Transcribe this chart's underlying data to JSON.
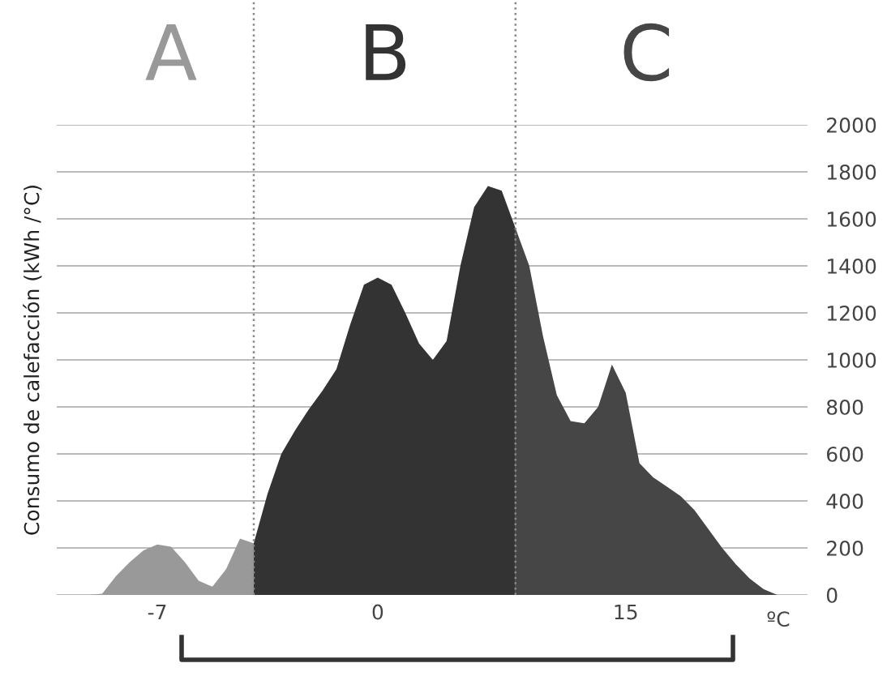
{
  "chart_data": {
    "type": "area",
    "ylabel": "Consumo de calefacción (kWh /°C)",
    "xlabel": "ºC",
    "categories": [
      null,
      null,
      null,
      null,
      null,
      "-7",
      null,
      null,
      null,
      null,
      null,
      null,
      null,
      null,
      null,
      null,
      null,
      null,
      null,
      null,
      null,
      "0",
      null,
      null,
      null,
      null,
      null,
      null,
      null,
      null,
      null,
      null,
      null,
      null,
      null,
      null,
      null,
      null,
      null,
      "15",
      null,
      null,
      null,
      null,
      null,
      null,
      null,
      null,
      null,
      null,
      null
    ],
    "series": [
      {
        "name": "A",
        "color": "#999999",
        "values": [
          0,
          5,
          80,
          140,
          190,
          215,
          205,
          140,
          60,
          35,
          110,
          240,
          220,
          null,
          null,
          null,
          null,
          null,
          null,
          null,
          null,
          null,
          null,
          null,
          null,
          null,
          null,
          null,
          null,
          null,
          null,
          null,
          null,
          null,
          null,
          null,
          null,
          null,
          null,
          null,
          null,
          null,
          null,
          null,
          null,
          null,
          null,
          null,
          null,
          null,
          null
        ]
      },
      {
        "name": "B",
        "color": "#333333",
        "values": [
          null,
          null,
          null,
          null,
          null,
          null,
          null,
          null,
          null,
          null,
          null,
          null,
          220,
          430,
          600,
          700,
          790,
          870,
          960,
          1150,
          1320,
          1350,
          1320,
          1200,
          1070,
          1000,
          1080,
          1400,
          1650,
          1740,
          1720,
          1560,
          null,
          null,
          null,
          null,
          null,
          null,
          null,
          null,
          null,
          null,
          null,
          null,
          null,
          null,
          null,
          null,
          null,
          null,
          null
        ]
      },
      {
        "name": "C",
        "color": "#464646",
        "values": [
          null,
          null,
          null,
          null,
          null,
          null,
          null,
          null,
          null,
          null,
          null,
          null,
          null,
          null,
          null,
          null,
          null,
          null,
          null,
          null,
          null,
          null,
          null,
          null,
          null,
          null,
          null,
          null,
          null,
          null,
          null,
          1560,
          1400,
          1100,
          850,
          740,
          730,
          800,
          980,
          860,
          560,
          500,
          460,
          420,
          360,
          280,
          200,
          130,
          70,
          25,
          0
        ]
      }
    ],
    "ylim": [
      0,
      2000
    ],
    "yticks": [
      0,
      200,
      400,
      600,
      800,
      1000,
      1200,
      1400,
      1600,
      1800,
      2000
    ],
    "grid": "y"
  }
}
